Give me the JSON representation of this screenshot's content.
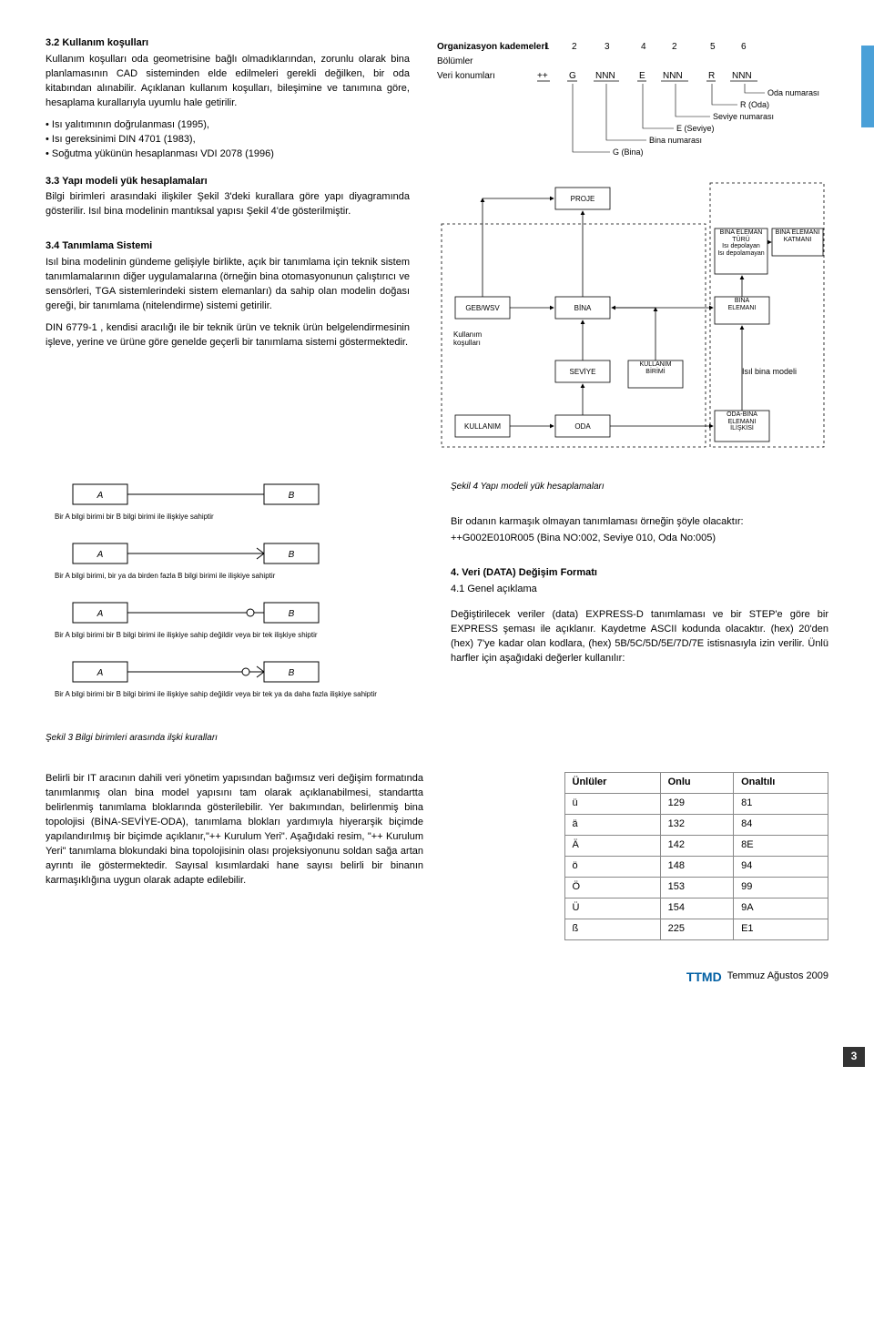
{
  "sec32": {
    "title": "3.2 Kullanım koşulları",
    "p1": "Kullanım koşulları oda geometrisine bağlı olmadıklarından, zorunlu olarak bina planlamasının CAD sisteminden elde edilmeleri gerekli değilken, bir oda kitabından alınabilir. Açıklanan kullanım koşulları, bileşimine ve tanımına göre, hesaplama kurallarıyla uyumlu hale getirilir.",
    "li1": "Isı yalıtımının doğrulanması (1995),",
    "li2": "Isı gereksinimi DIN 4701 (1983),",
    "li3": "Soğutma yükünün hesaplanması VDI 2078 (1996)"
  },
  "sec33": {
    "title": "3.3 Yapı modeli yük hesaplamaları",
    "p1": "Bilgi birimleri arasındaki ilişkiler Şekil 3'deki kurallara göre yapı diyagramında gösterilir. Isıl bina modelinin mantıksal yapısı Şekil 4'de gösterilmiştir."
  },
  "sec34": {
    "title": "3.4 Tanımlama Sistemi",
    "p1": "Isıl bina modelinin gündeme gelişiyle birlikte, açık bir tanımlama için teknik sistem tanımlamalarının diğer uygulamalarına (örneğin bina otomasyonunun çalıştırıcı ve sensörleri, TGA sistemlerindeki sistem elemanları) da sahip olan modelin doğası gereği, bir tanımlama (nitelendirme) sistemi getirilir.",
    "p2": "DIN 6779-1 , kendisi aracılığı ile bir teknik ürün ve teknik ürün belgelendirmesinin işleve, yerine ve ürüne göre genelde geçerli bir tanımlama sistemi göstermektedir."
  },
  "fig2": {
    "rows_label": "Organizasyon kademeleri",
    "r_bol": "Bölümler",
    "r_ver": "Veri konumları",
    "cols": [
      "1",
      "2",
      "3",
      "4",
      "2",
      "5",
      "6"
    ],
    "vals": [
      "++",
      "G",
      "NNN",
      "E",
      "NNN",
      "R",
      "NNN"
    ],
    "ann_oda": "Oda numarası",
    "ann_r": "R (Oda)",
    "ann_sev": "Seviye numarası",
    "ann_e": "E (Seviye)",
    "ann_bina": "Bina numarası",
    "ann_g": "G (Bina)"
  },
  "fig4_caption": "Şekil 4 Yapı modeli yük hesaplamaları",
  "fig4": {
    "proje": "PROJE",
    "gebwsv": "GEB/WSV",
    "kullkos": "Kullanım\nkoşulları",
    "kullanim": "KULLANIM",
    "bina": "BİNA",
    "seviye": "SEVİYE",
    "oda": "ODA",
    "kullbir": "KULLANIM\nBİRİMİ",
    "binael": "BİNA\nELEMANI",
    "odabina": "ODA-BİNA\nELEMANI\nİLİŞKİSİ",
    "binaelturu": "BİNA ELEMAN\nTÜRÜ\nIsı depolayan\nIsı depolamayan",
    "binaelkat": "BİNA ELEMANI\nKATMANI",
    "isilmodel": "Isıl bina modeli"
  },
  "fig3_caption": "Şekil 3 Bilgi birimleri arasında ilşki kuralları",
  "fig3": {
    "a": "A",
    "b": "B",
    "c1": "Bir A bilgi birimi bir B bilgi birimi ile ilişkiye sahiptir",
    "c2": "Bir A bilgi birimi, bir ya da birden fazla B bilgi birimi ile ilişkiye sahiptir",
    "c3": "Bir A bilgi birimi bir B bilgi birimi ile ilişkiye sahip değildir veya bir tek ilişkiye shiptir",
    "c4": "Bir A bilgi birimi bir B bilgi birimi ile ilişkiye sahip değildir veya bir tek ya da daha fazla ilişkiye sahiptir"
  },
  "mid": {
    "p1": "Bir odanın karmaşık olmayan tanımlaması örneğin şöyle olacaktır:",
    "p2": "++G002E010R005 (Bina NO:002, Seviye 010, Oda No:005)"
  },
  "sec4": {
    "title": "4. Veri (DATA) Değişim Formatı",
    "sub": "4.1 Genel açıklama",
    "p1": "Değiştirilecek veriler (data) EXPRESS-D tanımlaması ve bir STEP'e göre bir EXPRESS şeması ile açıklanır. Kaydetme ASCII kodunda olacaktır. (hex) 20'den (hex) 7'ye kadar olan kodlara, (hex) 5B/5C/5D/5E/7D/7E istisnasıyla izin verilir. Ünlü harfler için aşağıdaki değerler kullanılır:"
  },
  "bottom": {
    "p1": "Belirli bir IT aracının dahili veri yönetim yapısından bağımsız  veri değişim formatında tanımlanmış olan bina model yapısını tam olarak açıklanabilmesi, standartta belirlenmiş tanımlama bloklarında gösterilebilir. Yer bakımından, belirlenmiş bina topolojisi (BİNA-SEVİYE-ODA), tanımlama blokları yardımıyla hiyerarşik biçimde yapılandırılmış  bir biçimde açıklanır,\"++ Kurulum Yeri\". Aşağıdaki resim, \"++ Kurulum Yeri\" tanımlama blokundaki bina topolojisinin olası projeksiyonunu soldan sağa artan ayrıntı ile göstermektedir. Sayısal kısımlardaki hane sayısı belirli bir binanın karmaşıklığına uygun olarak adapte edilebilir."
  },
  "table": {
    "h1": "Ünlüler",
    "h2": "Onlu",
    "h3": "Onaltılı",
    "rows": [
      [
        "ü",
        "129",
        "81"
      ],
      [
        "ä",
        "132",
        "84"
      ],
      [
        "Ä",
        "142",
        "8E"
      ],
      [
        "ö",
        "148",
        "94"
      ],
      [
        "Ö",
        "153",
        "99"
      ],
      [
        "Ü",
        "154",
        "9A"
      ],
      [
        "ß",
        "225",
        "E1"
      ]
    ]
  },
  "footer": {
    "brand": "TTMD",
    "text": "Temmuz Ağustos 2009"
  },
  "pagenum": "3"
}
